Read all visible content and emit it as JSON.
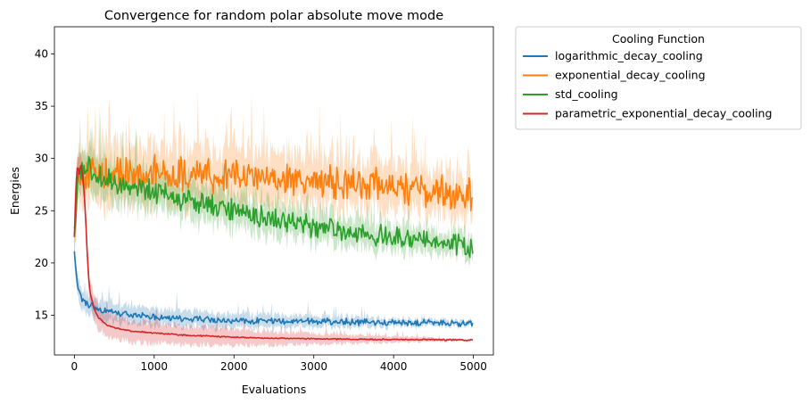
{
  "chart_data": {
    "type": "line",
    "title": "Convergence for random polar absolute move mode",
    "xlabel": "Evaluations",
    "ylabel": "Energies",
    "xlim": [
      -250,
      5250
    ],
    "ylim": [
      11.2,
      42.6
    ],
    "xticks": [
      0,
      1000,
      2000,
      3000,
      4000,
      5000
    ],
    "yticks": [
      15,
      20,
      25,
      30,
      35,
      40
    ],
    "grid": false,
    "legend": {
      "title": "Cooling Function",
      "placement": "outside-upper-right"
    },
    "series": [
      {
        "name": "logarithmic_decay_cooling",
        "color": "#1f77b4",
        "band_width": [
          1.2,
          0.3
        ],
        "noise": 0.25,
        "x": [
          0,
          30,
          60,
          100,
          150,
          200,
          300,
          400,
          500,
          700,
          1000,
          1500,
          2000,
          2500,
          3000,
          3500,
          4000,
          4500,
          5000
        ],
        "y": [
          21.0,
          18.5,
          17.2,
          16.5,
          16.1,
          15.9,
          15.6,
          15.4,
          15.25,
          15.05,
          14.85,
          14.6,
          14.5,
          14.45,
          14.4,
          14.35,
          14.3,
          14.25,
          14.2
        ]
      },
      {
        "name": "exponential_decay_cooling",
        "color": "#ff7f0e",
        "band_width": [
          3.5,
          2.5
        ],
        "noise": 1.3,
        "x": [
          0,
          50,
          100,
          200,
          400,
          700,
          1000,
          1500,
          2000,
          2500,
          3000,
          3500,
          4000,
          4500,
          5000
        ],
        "y": [
          23.5,
          28.0,
          28.5,
          28.5,
          28.4,
          28.3,
          28.5,
          28.6,
          28.4,
          28.0,
          27.8,
          27.5,
          27.3,
          27.0,
          26.5
        ]
      },
      {
        "name": "std_cooling",
        "color": "#2ca02c",
        "band_width": [
          2.5,
          1.2
        ],
        "noise": 0.8,
        "x": [
          0,
          50,
          100,
          200,
          400,
          700,
          1000,
          1500,
          2000,
          2500,
          3000,
          3500,
          4000,
          4500,
          5000
        ],
        "y": [
          22.5,
          28.5,
          29.0,
          29.0,
          28.0,
          27.3,
          26.8,
          25.8,
          25.0,
          24.2,
          23.5,
          22.9,
          22.5,
          22.0,
          21.6
        ]
      },
      {
        "name": "parametric_exponential_decay_cooling",
        "color": "#d62728",
        "band_width": [
          1.5,
          0.1
        ],
        "noise": 0.05,
        "x": [
          0,
          20,
          40,
          60,
          80,
          100,
          120,
          140,
          160,
          180,
          200,
          250,
          300,
          400,
          500,
          700,
          1000,
          1500,
          2000,
          2500,
          3000,
          3500,
          4000,
          4500,
          5000
        ],
        "y": [
          22.5,
          27.5,
          29.5,
          28.5,
          29.5,
          28.5,
          27.0,
          24.5,
          21.0,
          18.5,
          17.0,
          15.6,
          14.8,
          14.1,
          13.8,
          13.5,
          13.3,
          13.05,
          12.9,
          12.8,
          12.75,
          12.7,
          12.68,
          12.65,
          12.62
        ]
      }
    ]
  }
}
